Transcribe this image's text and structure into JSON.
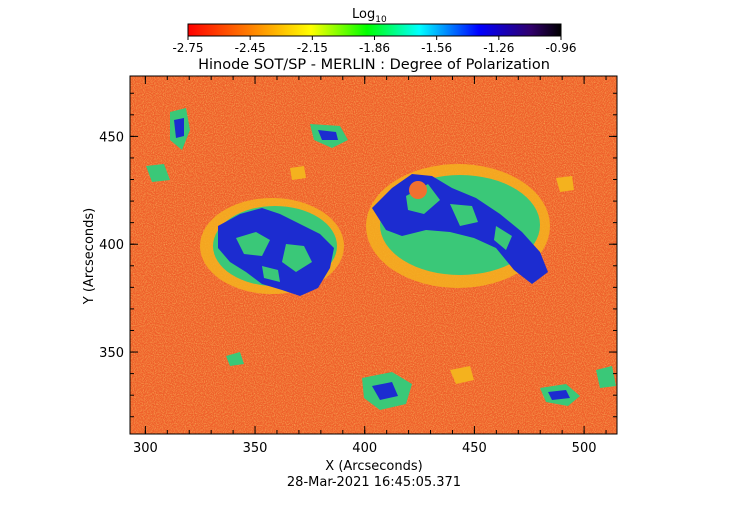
{
  "colorbar": {
    "title": "Log",
    "title_subscript": "10",
    "ticks": [
      "-2.75",
      "-2.45",
      "-2.15",
      "-1.86",
      "-1.56",
      "-1.26",
      "-0.96"
    ],
    "gradient": [
      "#ff0000",
      "#ff8a00",
      "#ffff00",
      "#00ff00",
      "#00ffff",
      "#0000ff",
      "#30006a",
      "#000000"
    ]
  },
  "title": "Hinode SOT/SP - MERLIN : Degree of Polarization",
  "x_axis": {
    "label": "X (Arcseconds)",
    "range": [
      293,
      515
    ],
    "ticks": [
      "300",
      "350",
      "400",
      "450",
      "500"
    ]
  },
  "y_axis": {
    "label": "Y (Arcseconds)",
    "range": [
      312,
      478
    ],
    "ticks": [
      "350",
      "400",
      "450"
    ]
  },
  "timestamp": "28-Mar-2021 16:45:05.371",
  "colors": {
    "background_map": "#f0642a",
    "high_polarization": "#1c2cd0",
    "mid_polarization": "#3ac878",
    "low_polarization": "#f4b21e"
  }
}
